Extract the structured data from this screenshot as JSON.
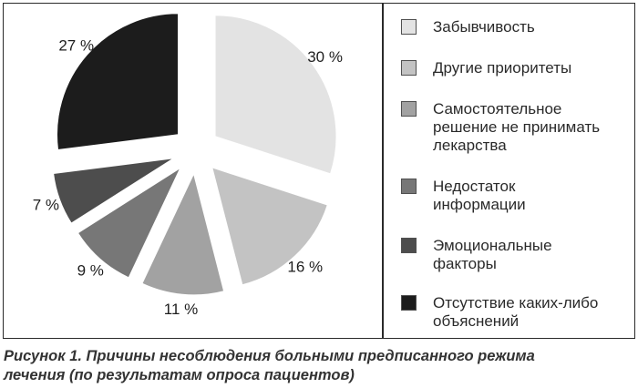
{
  "chart_data": {
    "type": "pie",
    "title": "",
    "slices": [
      {
        "label": "Забывчивость",
        "value": 30,
        "value_label": "30 %",
        "color": "#e3e3e3"
      },
      {
        "label": "Другие приоритеты",
        "value": 16,
        "value_label": "16 %",
        "color": "#c3c3c3"
      },
      {
        "label": "Самостоятельное\nрешение не принимать\nлекарства",
        "value": 11,
        "value_label": "11 %",
        "color": "#a2a2a2"
      },
      {
        "label": "Недостаток\nинформации",
        "value": 9,
        "value_label": "9 %",
        "color": "#777777"
      },
      {
        "label": "Эмоциональные\nфакторы",
        "value": 7,
        "value_label": "7 %",
        "color": "#4d4d4d"
      },
      {
        "label": "Отсутствие каких-либо\nобъяснений",
        "value": 27,
        "value_label": "27 %",
        "color": "#1c1c1c"
      }
    ],
    "legend_position": "right",
    "exploded": true
  },
  "caption": "Рисунок 1. Причины несоблюдения больными предписанного режима\nлечения (по результатам опроса пациентов)"
}
